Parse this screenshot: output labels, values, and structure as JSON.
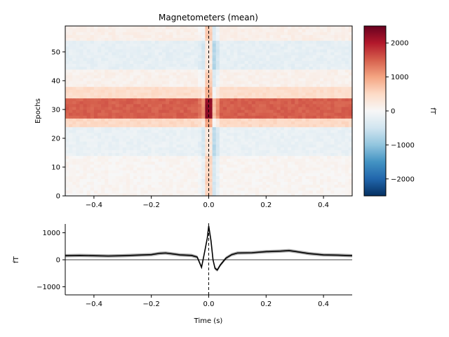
{
  "chart_data": [
    {
      "type": "heatmap",
      "title": "Magnetometers (mean)",
      "xlabel": "",
      "ylabel": "Epochs",
      "xlim": [
        -0.5,
        0.5
      ],
      "ylim": [
        0,
        59
      ],
      "x_ticks": [
        -0.4,
        -0.2,
        0.0,
        0.2,
        0.4
      ],
      "x_tick_labels": [
        "−0.4",
        "−0.2",
        "0.0",
        "0.2",
        "0.4"
      ],
      "y_ticks": [
        0,
        10,
        20,
        30,
        40,
        50
      ],
      "y_tick_labels": [
        "0",
        "10",
        "20",
        "30",
        "40",
        "50"
      ],
      "vline_x": 0.0,
      "colormap": "RdBu_r",
      "epoch_bands": [
        {
          "from": 0,
          "to": 14,
          "value": 60
        },
        {
          "from": 14,
          "to": 24,
          "value": -180
        },
        {
          "from": 24,
          "to": 27,
          "value": 500
        },
        {
          "from": 27,
          "to": 34,
          "value": 1500
        },
        {
          "from": 34,
          "to": 38,
          "value": 450
        },
        {
          "from": 38,
          "to": 44,
          "value": 120
        },
        {
          "from": 44,
          "to": 54,
          "value": -220
        },
        {
          "from": 54,
          "to": 59,
          "value": 150
        }
      ],
      "colorbar": {
        "label": "fT",
        "vmin": -2500,
        "vmax": 2500,
        "ticks": [
          2000,
          1000,
          0,
          -1000,
          -2000
        ],
        "tick_labels": [
          "2000",
          "1000",
          "0",
          "−1000",
          "−2000"
        ]
      }
    },
    {
      "type": "line",
      "title": "",
      "xlabel": "Time (s)",
      "ylabel": "fT",
      "xlim": [
        -0.5,
        0.5
      ],
      "ylim": [
        -1300,
        1300
      ],
      "x_ticks": [
        -0.4,
        -0.2,
        0.0,
        0.2,
        0.4
      ],
      "x_tick_labels": [
        "−0.4",
        "−0.2",
        "0.0",
        "0.2",
        "0.4"
      ],
      "y_ticks": [
        1000,
        0,
        -1000
      ],
      "y_tick_labels": [
        "1000",
        "0",
        "−1000"
      ],
      "hline_y": 0,
      "vline_x": 0.0,
      "series": [
        {
          "color": "#000000",
          "band_color": "#999999",
          "band_halfwidth": 60,
          "x": [
            -0.5,
            -0.45,
            -0.4,
            -0.35,
            -0.3,
            -0.25,
            -0.2,
            -0.17,
            -0.15,
            -0.12,
            -0.1,
            -0.08,
            -0.06,
            -0.04,
            -0.025,
            -0.015,
            -0.005,
            0.0,
            0.008,
            0.015,
            0.022,
            0.03,
            0.04,
            0.06,
            0.08,
            0.1,
            0.15,
            0.2,
            0.25,
            0.28,
            0.3,
            0.35,
            0.4,
            0.45,
            0.5
          ],
          "y": [
            150,
            160,
            150,
            140,
            150,
            170,
            190,
            240,
            250,
            210,
            180,
            170,
            160,
            100,
            -280,
            250,
            800,
            1250,
            700,
            0,
            -320,
            -380,
            -200,
            60,
            190,
            250,
            260,
            300,
            320,
            340,
            310,
            230,
            180,
            170,
            150
          ]
        }
      ]
    }
  ]
}
